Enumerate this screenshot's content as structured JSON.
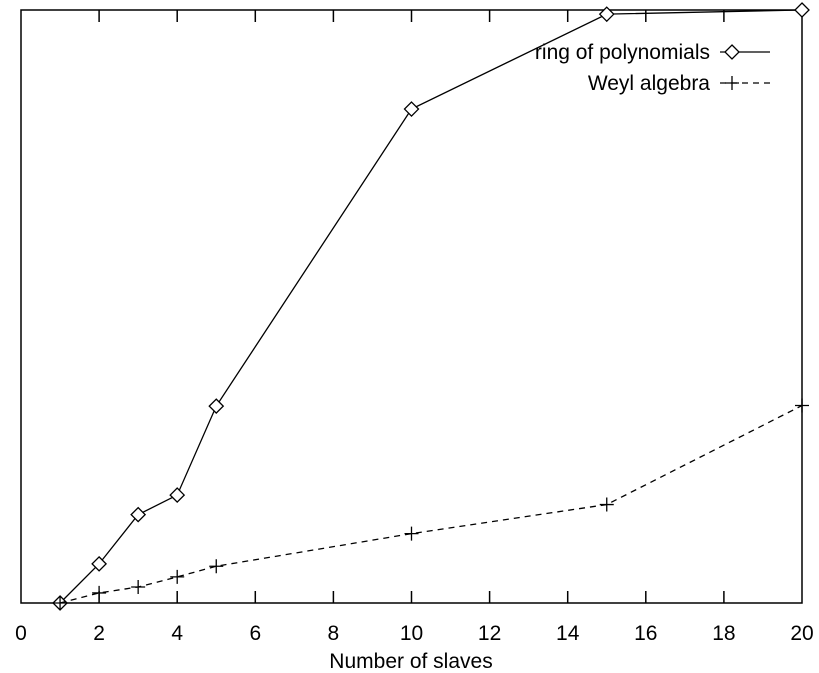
{
  "chart_data": {
    "type": "line",
    "title": "",
    "xlabel": "Number of slaves",
    "ylabel": "",
    "xlim": [
      0,
      20
    ],
    "ylim": [
      0,
      1
    ],
    "x_ticks": [
      0,
      2,
      4,
      6,
      8,
      10,
      12,
      14,
      16,
      18,
      20
    ],
    "y_ticks_shown": false,
    "grid": false,
    "legend_position": "top-right",
    "series": [
      {
        "name": "ring of polynomials",
        "marker": "diamond",
        "line_style": "solid",
        "color": "#000000",
        "x": [
          1,
          2,
          3,
          4,
          5,
          10,
          15,
          20
        ],
        "y": [
          0,
          0.066,
          0.149,
          0.182,
          0.332,
          0.833,
          0.993,
          1.0
        ]
      },
      {
        "name": "Weyl algebra",
        "marker": "plus",
        "line_style": "dashed",
        "color": "#000000",
        "x": [
          1,
          2,
          3,
          4,
          5,
          10,
          15,
          20
        ],
        "y": [
          0,
          0.017,
          0.027,
          0.044,
          0.062,
          0.117,
          0.166,
          0.333
        ]
      }
    ]
  }
}
